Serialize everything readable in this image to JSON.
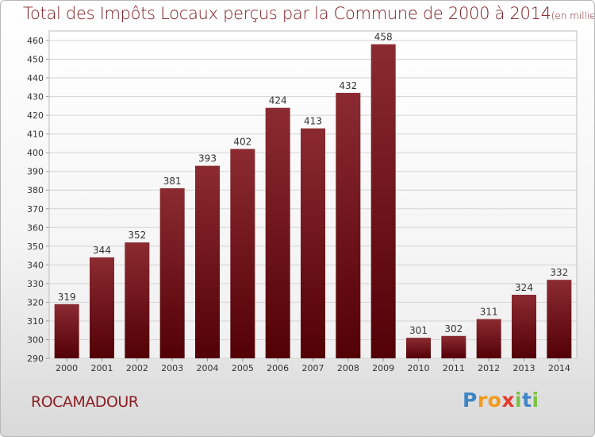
{
  "title": "Total des Impôts Locaux perçus par la Commune de 2000 à 2014",
  "title_unit": "(en milliers d'€)",
  "commune": "ROCAMADOUR",
  "logo": {
    "letters": [
      "P",
      "r",
      "o",
      "x",
      "i",
      "t",
      "i"
    ],
    "colors": [
      "#3d86c6",
      "#f29a1a",
      "#f29a1a",
      "#e63a2e",
      "#7cc242",
      "#3d86c6",
      "#7cc242"
    ]
  },
  "colors": {
    "bar": "#7a1a1f",
    "grid": "#d6d6d6",
    "text": "#333333"
  },
  "chart_data": {
    "type": "bar",
    "categories": [
      "2000",
      "2001",
      "2002",
      "2003",
      "2004",
      "2005",
      "2006",
      "2007",
      "2008",
      "2009",
      "2010",
      "2011",
      "2012",
      "2013",
      "2014"
    ],
    "values": [
      319,
      344,
      352,
      381,
      393,
      402,
      424,
      413,
      432,
      458,
      301,
      302,
      311,
      324,
      332
    ],
    "data_labels": [
      "319",
      "344",
      "352",
      "381",
      "393",
      "402",
      "424",
      "413",
      "432",
      "458",
      "301",
      "302",
      "311",
      "324",
      "332"
    ],
    "yticks": [
      "290",
      "300",
      "310",
      "320",
      "330",
      "340",
      "350",
      "360",
      "370",
      "380",
      "390",
      "400",
      "410",
      "420",
      "430",
      "440",
      "450",
      "460"
    ],
    "ylim": [
      290,
      460
    ],
    "grid": true
  }
}
